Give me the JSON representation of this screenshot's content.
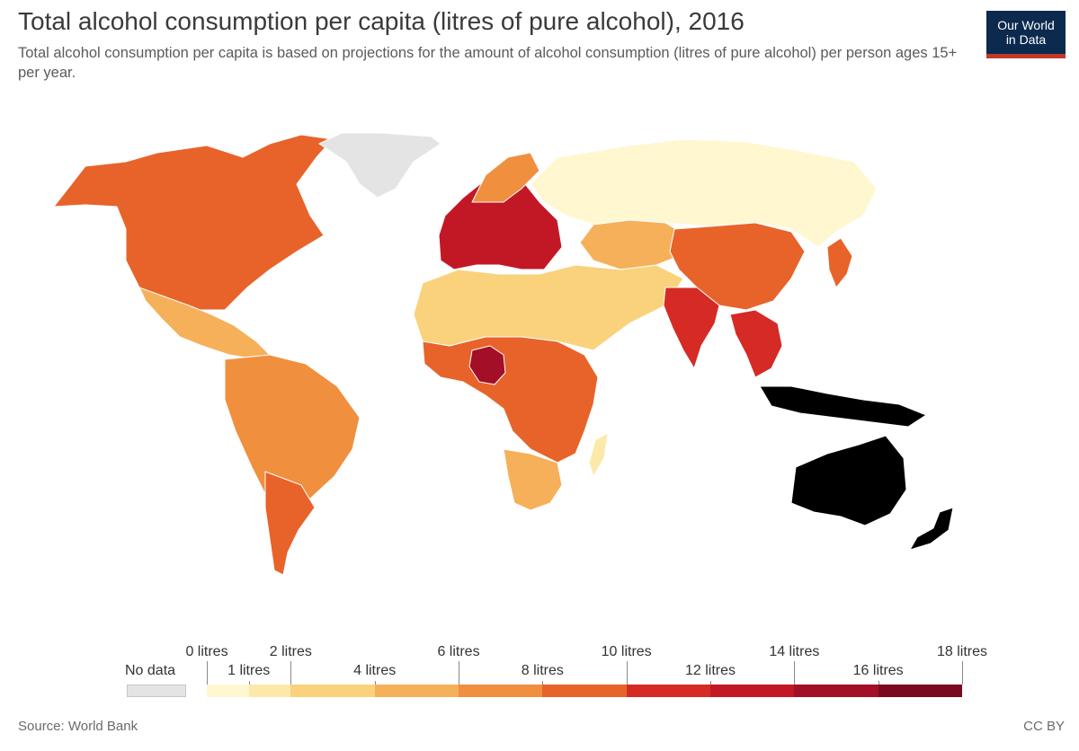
{
  "header": {
    "title": "Total alcohol consumption per capita (litres of pure alcohol), 2016",
    "subtitle": "Total alcohol consumption per capita is based on projections for the amount of alcohol consumption (litres of pure alcohol) per person ages 15+ per year."
  },
  "logo": {
    "line1": "Our World",
    "line2": "in Data",
    "bg_color": "#0b2a4e",
    "accent_color": "#c0392b"
  },
  "legend": {
    "no_data_label": "No data",
    "no_data_color": "#e4e4e4",
    "ticks": [
      {
        "value": 0,
        "label": "0 litres"
      },
      {
        "value": 1,
        "label": "1 litres"
      },
      {
        "value": 2,
        "label": "2 litres"
      },
      {
        "value": 4,
        "label": "4 litres"
      },
      {
        "value": 6,
        "label": "6 litres"
      },
      {
        "value": 8,
        "label": "8 litres"
      },
      {
        "value": 10,
        "label": "10 litres"
      },
      {
        "value": 12,
        "label": "12 litres"
      },
      {
        "value": 14,
        "label": "14 litres"
      },
      {
        "value": 16,
        "label": "16 litres"
      },
      {
        "value": 18,
        "label": "18 litres"
      }
    ],
    "bins": [
      {
        "from": 0,
        "to": 1,
        "color": "#fef7d0"
      },
      {
        "from": 1,
        "to": 2,
        "color": "#fce9a9"
      },
      {
        "from": 2,
        "to": 4,
        "color": "#f9d27b"
      },
      {
        "from": 4,
        "to": 6,
        "color": "#f6b05a"
      },
      {
        "from": 6,
        "to": 8,
        "color": "#f08f3e"
      },
      {
        "from": 8,
        "to": 10,
        "color": "#e8632a"
      },
      {
        "from": 10,
        "to": 12,
        "color": "#d62a25"
      },
      {
        "from": 12,
        "to": 14,
        "color": "#c21826"
      },
      {
        "from": 14,
        "to": 16,
        "color": "#a20f27"
      },
      {
        "from": 16,
        "to": 18,
        "color": "#7a0a1f"
      }
    ]
  },
  "map": {
    "land_regions": [
      {
        "name": "North America",
        "color": "#e8632a"
      },
      {
        "name": "Greenland",
        "color": "#e4e4e4"
      },
      {
        "name": "Mexico",
        "color": "#f6b05a"
      },
      {
        "name": "South America",
        "color": "#f08f3e"
      },
      {
        "name": "Argentina",
        "color": "#e8632a"
      },
      {
        "name": "Europe",
        "color": "#c21826"
      },
      {
        "name": "Russia",
        "color": "#d62a25"
      },
      {
        "name": "North Africa & Middle East",
        "color": "#fef7d0"
      },
      {
        "name": "Sub-Saharan Africa",
        "color": "#f9d27b"
      },
      {
        "name": "Southern Africa",
        "color": "#e8632a"
      },
      {
        "name": "Nigeria",
        "color": "#a20f27"
      },
      {
        "name": "Central Asia",
        "color": "#f6b05a"
      },
      {
        "name": "China",
        "color": "#f08f3e"
      },
      {
        "name": "India",
        "color": "#f6b05a"
      },
      {
        "name": "Southeast Asia",
        "color": "#e8632a"
      },
      {
        "name": "Indonesia",
        "color": "#fce9a9"
      },
      {
        "name": "Australia",
        "color": "#d62a25"
      },
      {
        "name": "New Zealand",
        "color": "#d62a25"
      }
    ]
  },
  "footer": {
    "source": "Source: World Bank",
    "license": "CC BY"
  }
}
